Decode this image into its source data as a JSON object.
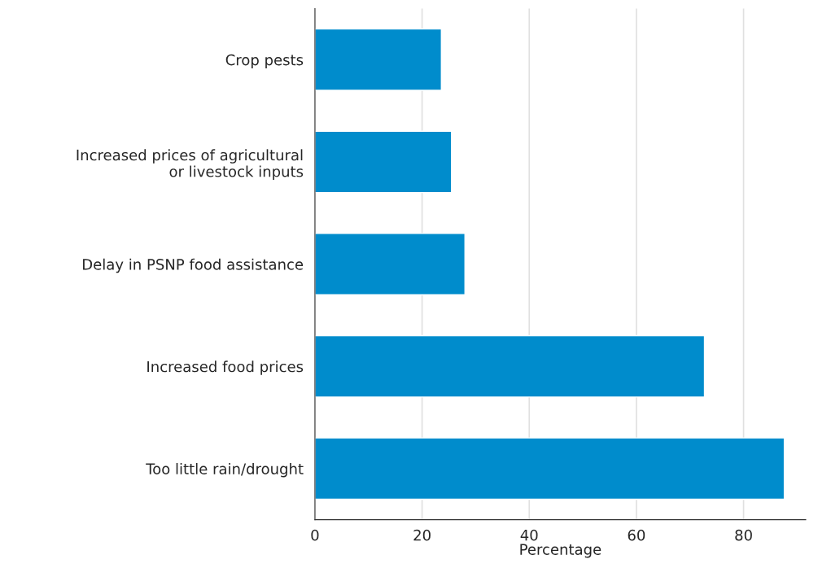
{
  "chart_data": {
    "type": "bar",
    "orientation": "horizontal",
    "categories": [
      "Crop pests",
      "Increased prices of agricultural\nor livestock inputs",
      "Delay in PSNP food assistance",
      "Increased food prices",
      "Too little rain/drought"
    ],
    "values": [
      23.6,
      25.5,
      28.0,
      72.7,
      87.6
    ],
    "color": "#008ccc",
    "xlim": [
      0,
      91.6
    ],
    "xticks": [
      0,
      20,
      40,
      60,
      80
    ],
    "xlabel": "Percentage",
    "grid": "x"
  }
}
